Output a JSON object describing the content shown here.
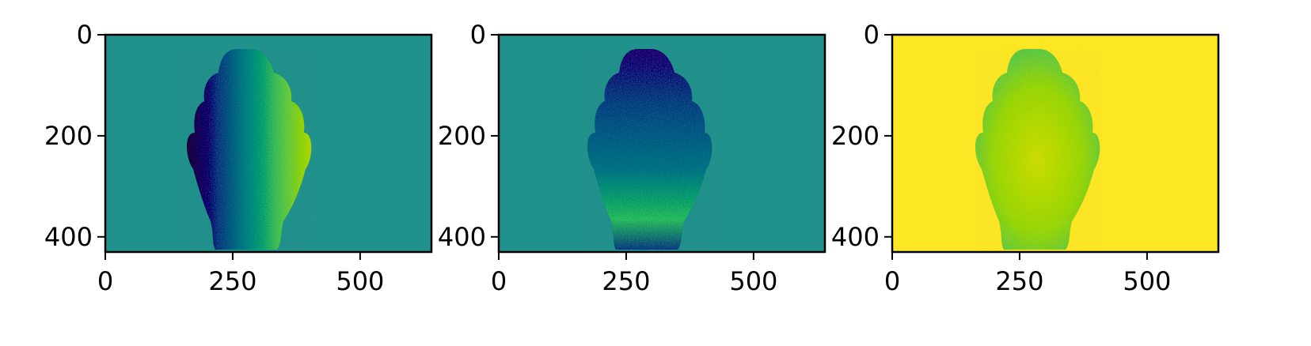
{
  "chart_data": [
    {
      "type": "heatmap",
      "title": "",
      "xlabel": "",
      "ylabel": "",
      "xlim": [
        0,
        640
      ],
      "ylim": [
        430,
        0
      ],
      "xticks": [
        0,
        250,
        500
      ],
      "yticks": [
        0,
        200,
        400
      ],
      "xtick_labels": [
        "0",
        "250",
        "500"
      ],
      "ytick_labels": [
        "0",
        "200",
        "400"
      ],
      "colormap": "viridis",
      "background_color": "#21918c",
      "content": "Buddha head image, shaded left-to-right gradient (purple to yellow-green)",
      "grid": false
    },
    {
      "type": "heatmap",
      "title": "",
      "xlabel": "",
      "ylabel": "",
      "xlim": [
        0,
        640
      ],
      "ylim": [
        430,
        0
      ],
      "xticks": [
        0,
        250,
        500
      ],
      "yticks": [
        0,
        200,
        400
      ],
      "xtick_labels": [
        "0",
        "250",
        "500"
      ],
      "ytick_labels": [
        "0",
        "200",
        "400"
      ],
      "colormap": "viridis",
      "background_color": "#21918c",
      "content": "Buddha head image, shaded top-to-bottom gradient (purple to green)",
      "grid": false
    },
    {
      "type": "heatmap",
      "title": "",
      "xlabel": "",
      "ylabel": "",
      "xlim": [
        0,
        640
      ],
      "ylim": [
        430,
        0
      ],
      "xticks": [
        0,
        250,
        500
      ],
      "yticks": [
        0,
        200,
        400
      ],
      "xtick_labels": [
        "0",
        "250",
        "500"
      ],
      "ytick_labels": [
        "0",
        "200",
        "400"
      ],
      "colormap": "viridis",
      "background_color": "#fde725",
      "content": "Buddha head image, green-yellow shading on yellow background",
      "grid": false
    }
  ]
}
